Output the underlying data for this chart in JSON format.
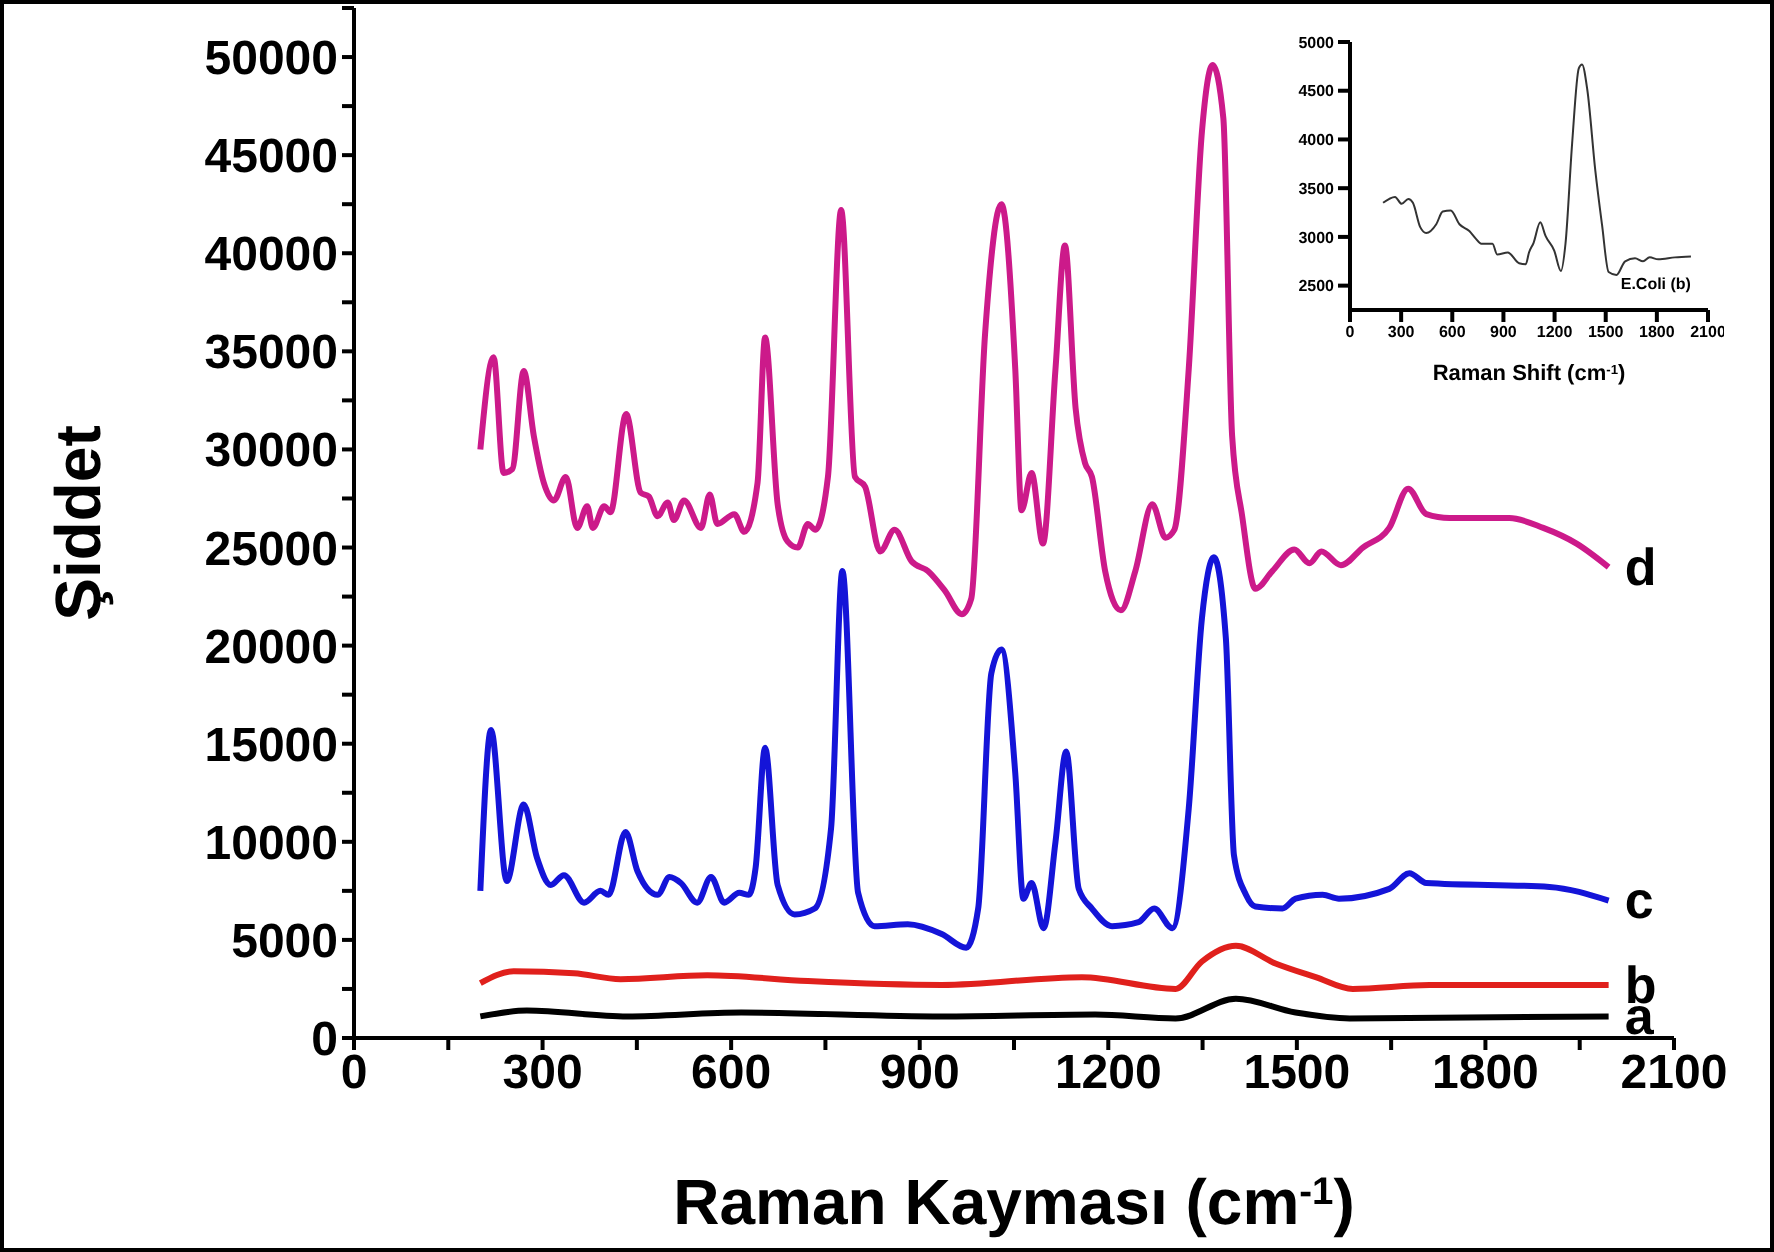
{
  "chart_data": [
    {
      "type": "line",
      "xlabel": "Raman Kayması (cm$^{-1}$)",
      "ylabel": "Şiddet",
      "xlim": [
        0,
        2100
      ],
      "ylim": [
        0,
        52500
      ],
      "xticks": [
        0,
        {
          "value": 150,
          "label": null
        },
        300,
        {
          "value": 450,
          "label": null
        },
        600,
        {
          "value": 750,
          "label": null
        },
        900,
        {
          "value": 1050,
          "label": null
        },
        1200,
        {
          "value": 1350,
          "label": null
        },
        1500,
        {
          "value": 1650,
          "label": null
        },
        1800,
        {
          "value": 1950,
          "label": null
        },
        2100
      ],
      "yticks": [
        0,
        {
          "value": 2500,
          "label": null
        },
        5000,
        {
          "value": 7500,
          "label": null
        },
        10000,
        {
          "value": 12500,
          "label": null
        },
        15000,
        {
          "value": 17500,
          "label": null
        },
        20000,
        {
          "value": 22500,
          "label": null
        },
        25000,
        {
          "value": 27500,
          "label": null
        },
        30000,
        {
          "value": 32500,
          "label": null
        },
        35000,
        {
          "value": 37500,
          "label": null
        },
        40000,
        {
          "value": 42500,
          "label": null
        },
        45000,
        {
          "value": 47500,
          "label": null
        },
        50000,
        {
          "value": 52500,
          "label": null
        }
      ],
      "grid": false,
      "legend": false,
      "marker": "none",
      "line_style": "solid",
      "series": [
        {
          "name": "a",
          "color": "#000000",
          "x": [
            201,
            275,
            435,
            616,
            935,
            1179,
            1307,
            1403,
            1498,
            1584,
            1996
          ],
          "values": [
            1100,
            1400,
            1100,
            1300,
            1100,
            1200,
            1000,
            2000,
            1300,
            1000,
            1100
          ]
        },
        {
          "name": "b",
          "color": "#e0201c",
          "x": [
            201,
            254,
            350,
            424,
            562,
            722,
            935,
            1158,
            1307,
            1349,
            1403,
            1466,
            1530,
            1589,
            1711,
            1996
          ],
          "values": [
            2800,
            3400,
            3300,
            3000,
            3200,
            2900,
            2700,
            3100,
            2500,
            3900,
            4700,
            3800,
            3100,
            2500,
            2700,
            2700
          ]
        },
        {
          "name": "c",
          "color": "#1414d8",
          "x": [
            201,
            218,
            243,
            270,
            291,
            313,
            334,
            366,
            392,
            405,
            432,
            451,
            483,
            502,
            520,
            546,
            568,
            589,
            613,
            628,
            639,
            654,
            674,
            701,
            733,
            759,
            777,
            802,
            828,
            881,
            935,
            974,
            993,
            1014,
            1030,
            1052,
            1065,
            1078,
            1097,
            1116,
            1133,
            1153,
            1174,
            1206,
            1248,
            1273,
            1302,
            1328,
            1349,
            1368,
            1387,
            1400,
            1419,
            1434,
            1477,
            1498,
            1541,
            1567,
            1647,
            1679,
            1706,
            1902,
            1996
          ],
          "values": [
            7500,
            15700,
            8000,
            11900,
            9200,
            7800,
            8300,
            6900,
            7500,
            7300,
            10500,
            8500,
            7300,
            8200,
            7900,
            6900,
            8200,
            6900,
            7400,
            7300,
            8700,
            14800,
            7800,
            6300,
            6600,
            10700,
            23800,
            7400,
            5700,
            5800,
            5300,
            4600,
            6600,
            18600,
            19800,
            13500,
            7100,
            7900,
            5600,
            10000,
            14600,
            7600,
            6600,
            5700,
            5900,
            6600,
            5600,
            11700,
            21400,
            24500,
            20400,
            9300,
            7300,
            6700,
            6600,
            7100,
            7300,
            7100,
            7600,
            8400,
            7900,
            7700,
            7000
          ]
        },
        {
          "name": "d",
          "color": "#cc1a8a",
          "x": [
            201,
            222,
            238,
            252,
            270,
            286,
            302,
            318,
            337,
            355,
            371,
            380,
            398,
            408,
            433,
            456,
            469,
            483,
            499,
            509,
            525,
            552,
            566,
            578,
            605,
            621,
            642,
            654,
            674,
            690,
            706,
            722,
            734,
            754,
            775,
            797,
            813,
            837,
            860,
            887,
            913,
            940,
            967,
            982,
            1004,
            1030,
            1052,
            1062,
            1078,
            1096,
            1116,
            1131,
            1148,
            1163,
            1174,
            1195,
            1220,
            1243,
            1270,
            1291,
            1305,
            1328,
            1349,
            1366,
            1383,
            1397,
            1413,
            1434,
            1461,
            1496,
            1520,
            1539,
            1570,
            1605,
            1647,
            1677,
            1706,
            1743,
            1838,
            1892,
            1945,
            1996
          ],
          "values": [
            30000,
            34700,
            28800,
            29000,
            34000,
            30700,
            28300,
            27400,
            28600,
            26000,
            27100,
            26000,
            27100,
            26800,
            31800,
            27800,
            27600,
            26600,
            27300,
            26400,
            27400,
            26000,
            27700,
            26200,
            26700,
            25800,
            28300,
            35700,
            27200,
            25300,
            25000,
            26200,
            25900,
            28600,
            42200,
            28600,
            28100,
            24800,
            25900,
            24300,
            23800,
            22800,
            21600,
            22400,
            35900,
            42500,
            34100,
            26900,
            28800,
            25200,
            34100,
            40400,
            32100,
            29300,
            28600,
            23800,
            21800,
            23800,
            27200,
            25500,
            25900,
            34100,
            46200,
            49600,
            46900,
            30700,
            26600,
            22900,
            23800,
            24900,
            24200,
            24800,
            24100,
            25000,
            26000,
            28000,
            26700,
            26500,
            26500,
            26000,
            25200,
            24000
          ]
        }
      ]
    },
    {
      "type": "line",
      "xlabel": "Raman Shift (cm$^{-1}$)",
      "xlim": [
        0,
        2100
      ],
      "ylim": [
        2250,
        5000
      ],
      "xticks": [
        0,
        300,
        600,
        900,
        1200,
        1500,
        1800,
        2100
      ],
      "yticks": [
        2500,
        3000,
        3500,
        4000,
        4500,
        5000
      ],
      "grid": false,
      "legend": false,
      "marker": "none",
      "line_style": "solid",
      "series": [
        {
          "name": "E.Coli (b)",
          "color": "#333333",
          "x": [
            194,
            264,
            303,
            342,
            369,
            412,
            447,
            506,
            544,
            591,
            642,
            700,
            739,
            770,
            836,
            863,
            926,
            992,
            1031,
            1050,
            1077,
            1116,
            1147,
            1198,
            1237,
            1264,
            1303,
            1342,
            1361,
            1392,
            1439,
            1478,
            1517,
            1563,
            1614,
            1672,
            1719,
            1758,
            1808,
            1906,
            2000
          ],
          "values": [
            3350,
            3410,
            3340,
            3390,
            3350,
            3100,
            3040,
            3130,
            3260,
            3270,
            3130,
            3060,
            2980,
            2930,
            2930,
            2820,
            2840,
            2730,
            2720,
            2840,
            2940,
            3150,
            3010,
            2860,
            2650,
            2930,
            3960,
            4730,
            4770,
            4510,
            3680,
            3130,
            2640,
            2610,
            2750,
            2780,
            2750,
            2790,
            2770,
            2790,
            2800
          ]
        }
      ]
    }
  ]
}
